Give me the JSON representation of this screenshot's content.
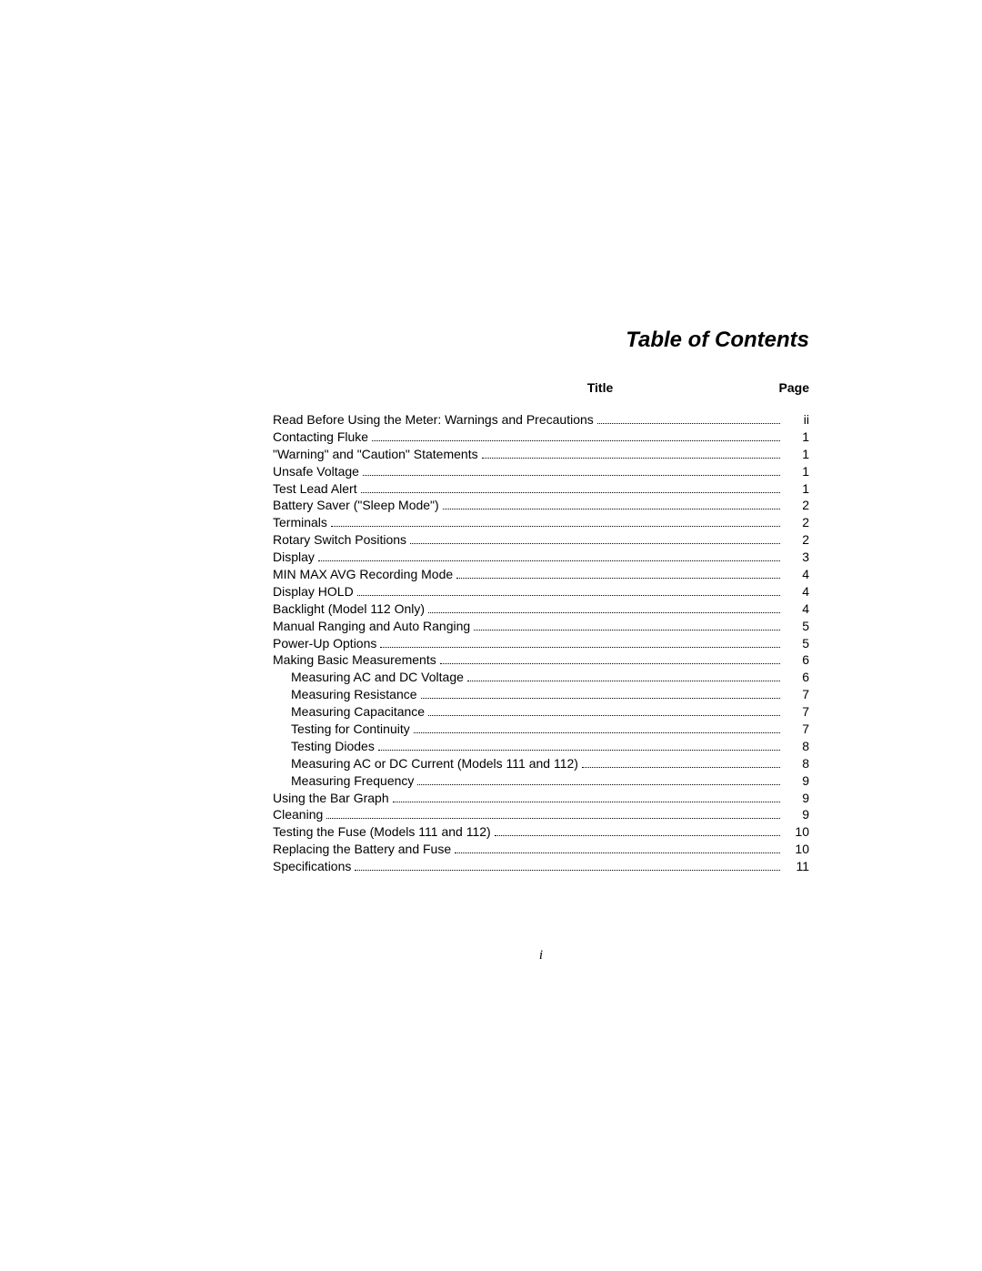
{
  "heading": "Table of Contents",
  "columns": {
    "title": "Title",
    "page": "Page"
  },
  "entries": [
    {
      "title": "Read Before Using the Meter: Warnings and Precautions",
      "page": "ii",
      "indent": false
    },
    {
      "title": "Contacting Fluke",
      "page": "1",
      "indent": false
    },
    {
      "title": "\"Warning\" and \"Caution\" Statements",
      "page": "1",
      "indent": false
    },
    {
      "title": "Unsafe Voltage",
      "page": "1",
      "indent": false
    },
    {
      "title": "Test Lead Alert",
      "page": "1",
      "indent": false
    },
    {
      "title": "Battery Saver (\"Sleep Mode\")",
      "page": "2",
      "indent": false
    },
    {
      "title": "Terminals",
      "page": "2",
      "indent": false
    },
    {
      "title": "Rotary Switch Positions",
      "page": "2",
      "indent": false
    },
    {
      "title": "Display",
      "page": "3",
      "indent": false
    },
    {
      "title": "MIN MAX AVG Recording Mode",
      "page": "4",
      "indent": false
    },
    {
      "title": "Display HOLD",
      "page": "4",
      "indent": false
    },
    {
      "title": "Backlight (Model 112 Only)",
      "page": "4",
      "indent": false
    },
    {
      "title": "Manual Ranging and Auto Ranging",
      "page": "5",
      "indent": false
    },
    {
      "title": "Power-Up Options",
      "page": "5",
      "indent": false
    },
    {
      "title": "Making Basic Measurements",
      "page": "6",
      "indent": false
    },
    {
      "title": "Measuring AC and DC Voltage",
      "page": "6",
      "indent": true
    },
    {
      "title": "Measuring Resistance",
      "page": "7",
      "indent": true
    },
    {
      "title": "Measuring Capacitance",
      "page": "7",
      "indent": true
    },
    {
      "title": "Testing for Continuity",
      "page": "7",
      "indent": true
    },
    {
      "title": "Testing Diodes",
      "page": "8",
      "indent": true
    },
    {
      "title": "Measuring AC or DC Current (Models 111 and 112)",
      "page": "8",
      "indent": true
    },
    {
      "title": "Measuring Frequency",
      "page": "9",
      "indent": true
    },
    {
      "title": "Using the Bar Graph",
      "page": "9",
      "indent": false
    },
    {
      "title": "Cleaning",
      "page": "9",
      "indent": false
    },
    {
      "title": "Testing the Fuse (Models 111 and 112)",
      "page": "10",
      "indent": false
    },
    {
      "title": "Replacing the Battery and Fuse",
      "page": "10",
      "indent": false
    },
    {
      "title": "Specifications",
      "page": "11",
      "indent": false
    }
  ],
  "pageNumber": "i"
}
